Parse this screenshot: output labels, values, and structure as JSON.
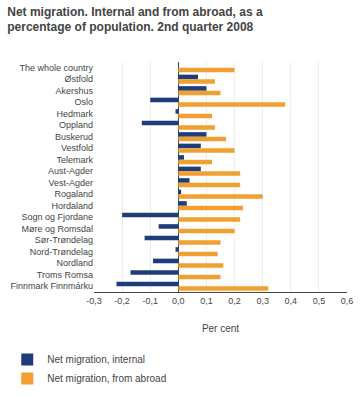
{
  "chart_data": {
    "type": "bar",
    "orientation": "horizontal",
    "title": "Net migration. Internal and from abroad, as a\npercentage of population. 2nd quarter 2008",
    "categories": [
      "The whole country",
      "Østfold",
      "Akershus",
      "Oslo",
      "Hedmark",
      "Oppland",
      "Buskerud",
      "Vestfold",
      "Telemark",
      "Aust-Agder",
      "Vest-Agder",
      "Rogaland",
      "Hordaland",
      "Sogn og Fjordane",
      "Møre og Romsdal",
      "Sør-Trøndelag",
      "Nord-Trøndelag",
      "Nordland",
      "Troms Romsa",
      "Finnmark Finnmárku"
    ],
    "series": [
      {
        "name": "Net migration, internal",
        "color": "#1f3d7a",
        "values": [
          0.0,
          0.07,
          0.1,
          -0.1,
          -0.01,
          -0.13,
          0.1,
          0.08,
          0.02,
          0.08,
          0.04,
          0.01,
          0.03,
          -0.2,
          -0.07,
          -0.12,
          -0.01,
          -0.09,
          -0.17,
          -0.22
        ]
      },
      {
        "name": "Net migration, from abroad",
        "color": "#f0a030",
        "values": [
          0.2,
          0.13,
          0.15,
          0.38,
          0.12,
          0.13,
          0.17,
          0.2,
          0.12,
          0.22,
          0.22,
          0.3,
          0.23,
          0.22,
          0.2,
          0.15,
          0.14,
          0.16,
          0.15,
          0.32
        ]
      }
    ],
    "xlabel": "Per cent",
    "xlim": [
      -0.3,
      0.6
    ],
    "xticks": [
      {
        "value": -0.3,
        "label": "-0,3"
      },
      {
        "value": -0.2,
        "label": "-0,2"
      },
      {
        "value": -0.1,
        "label": "-0,1"
      },
      {
        "value": 0.0,
        "label": "0,0"
      },
      {
        "value": 0.1,
        "label": "0,1"
      },
      {
        "value": 0.2,
        "label": "0,2"
      },
      {
        "value": 0.3,
        "label": "0,3"
      },
      {
        "value": 0.4,
        "label": "0,4"
      },
      {
        "value": 0.5,
        "label": "0,5"
      },
      {
        "value": 0.6,
        "label": "0,6"
      }
    ],
    "grid": true,
    "legend": "bottom"
  }
}
